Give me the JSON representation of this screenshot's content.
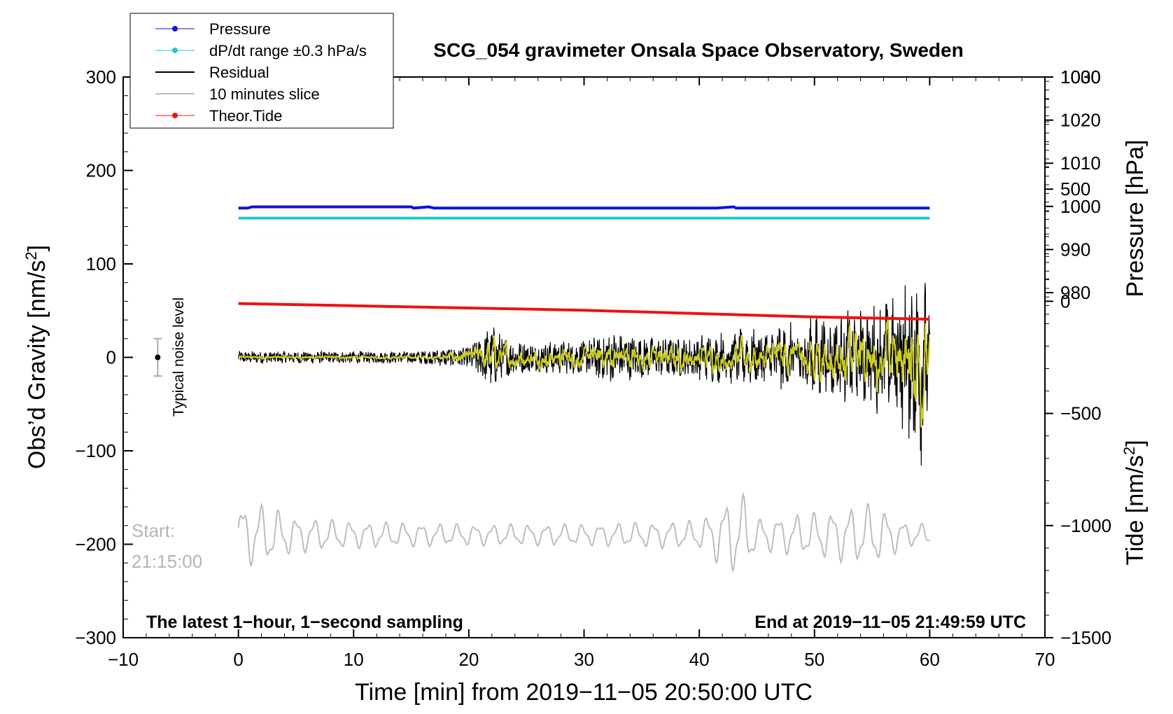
{
  "chart_data": {
    "type": "line",
    "title": "SCG_054 gravimeter Onsala Space Observatory, Sweden",
    "xlabel": "Time [min] from 2019−11−05 20:50:00 UTC",
    "ylabel_left": "Obs’d Gravity [nm/s²]",
    "ylabel_right_top": "Pressure [hPa]",
    "ylabel_right_bottom": "Tide [nm/s²]",
    "xlim": [
      -10,
      70
    ],
    "ylim": [
      -300,
      300
    ],
    "pressure_ylim": [
      900,
      1030
    ],
    "tide_ylim": [
      -1500,
      1000
    ],
    "x_ticks": [
      "−10",
      "0",
      "10",
      "20",
      "30",
      "40",
      "50",
      "60",
      "70"
    ],
    "y_ticks": [
      "300",
      "200",
      "100",
      "0",
      "−100",
      "−200",
      "−300"
    ],
    "pressure_ticks": [
      "1030",
      "1020",
      "1010",
      "1000",
      "990",
      "980"
    ],
    "tide_ticks": [
      "1000",
      "500",
      "0",
      "−500",
      "−1000",
      "−1500"
    ],
    "legend": [
      {
        "label": "Pressure",
        "color": "#1010e0"
      },
      {
        "label": "dP/dt range ±0.3 hPa/s",
        "color": "#20c8c8"
      },
      {
        "label": "Residual",
        "color": "#000000"
      },
      {
        "label": "10 minutes slice",
        "color": "#bdbdbd"
      },
      {
        "label": "Theor.Tide",
        "color": "#ee1111"
      }
    ],
    "annotations": {
      "noise": "Typical noise level",
      "start_label": "Start:",
      "start_time": "21:15:00",
      "bottom_left": "The latest 1−hour, 1−second sampling",
      "bottom_right": "End at 2019−11−05 21:49:59 UTC"
    },
    "noise_bar": {
      "x": -7,
      "center": 0,
      "halfwidth": 20
    },
    "series": {
      "pressure": {
        "name": "Pressure",
        "unit": "hPa",
        "x": [
          0,
          0.8,
          1.2,
          13.5,
          15.0,
          15.2,
          16.5,
          17.0,
          41.5,
          43.0,
          43.2,
          60
        ],
        "values": [
          999.6,
          999.6,
          999.9,
          999.9,
          999.9,
          999.6,
          999.9,
          999.6,
          999.6,
          999.9,
          999.6,
          999.6
        ]
      },
      "dpdt": {
        "name": "dP/dt range",
        "x": [
          0,
          60
        ],
        "values": [
          149,
          149
        ]
      },
      "tide": {
        "name": "Theor.Tide",
        "unit": "nm/s²",
        "x": [
          0,
          10,
          20,
          30,
          40,
          50,
          60
        ],
        "values": [
          -10,
          -20,
          -30,
          -40,
          -55,
          -70,
          -80
        ]
      },
      "residual": {
        "name": "Residual",
        "envelope_x": [
          0,
          5,
          10,
          15,
          20,
          22,
          23,
          25,
          30,
          32,
          35,
          40,
          45,
          48,
          50,
          52,
          55,
          57,
          58,
          59,
          60
        ],
        "envelope_values": [
          8,
          8,
          8,
          8,
          14,
          42,
          28,
          20,
          22,
          34,
          26,
          25,
          30,
          38,
          42,
          46,
          55,
          62,
          80,
          125,
          65
        ]
      },
      "slice": {
        "name": "10 minutes slice",
        "x_range": [
          0,
          60
        ],
        "center": -190,
        "envelope_x": [
          0,
          2,
          5,
          10,
          20,
          30,
          40,
          43,
          44,
          45,
          50,
          55,
          58,
          60
        ],
        "envelope_values": [
          35,
          35,
          20,
          15,
          12,
          12,
          16,
          45,
          45,
          18,
          25,
          35,
          14,
          12
        ]
      }
    }
  }
}
